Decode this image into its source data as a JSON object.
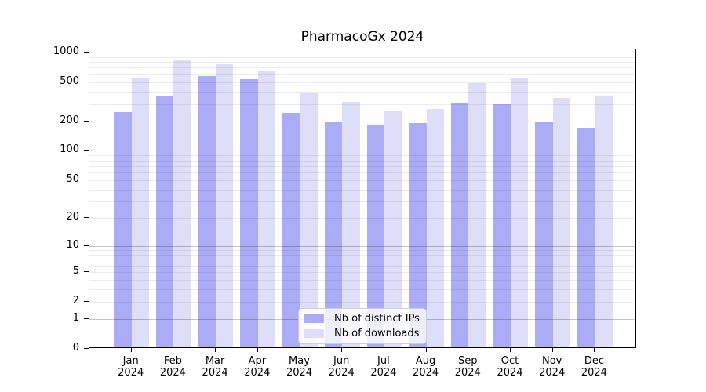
{
  "title": "PharmacoGx 2024",
  "legend": {
    "items": [
      {
        "label": "Nb of distinct IPs",
        "color": "#abacf5"
      },
      {
        "label": "Nb of downloads",
        "color": "#dedef9"
      }
    ]
  },
  "y_axis": {
    "tick_labels": [
      "0",
      "1",
      "2",
      "5",
      "10",
      "20",
      "50",
      "100",
      "200",
      "500",
      "1000"
    ]
  },
  "x_axis": {
    "months": [
      {
        "month": "Jan",
        "year": "2024"
      },
      {
        "month": "Feb",
        "year": "2024"
      },
      {
        "month": "Mar",
        "year": "2024"
      },
      {
        "month": "Apr",
        "year": "2024"
      },
      {
        "month": "May",
        "year": "2024"
      },
      {
        "month": "Jun",
        "year": "2024"
      },
      {
        "month": "Jul",
        "year": "2024"
      },
      {
        "month": "Aug",
        "year": "2024"
      },
      {
        "month": "Sep",
        "year": "2024"
      },
      {
        "month": "Oct",
        "year": "2024"
      },
      {
        "month": "Nov",
        "year": "2024"
      },
      {
        "month": "Dec",
        "year": "2024"
      }
    ]
  },
  "chart_data": {
    "type": "bar",
    "title": "PharmacoGx 2024",
    "scale": "log10(1 + value), 0 at baseline",
    "categories": [
      "Jan 2024",
      "Feb 2024",
      "Mar 2024",
      "Apr 2024",
      "May 2024",
      "Jun 2024",
      "Jul 2024",
      "Aug 2024",
      "Sep 2024",
      "Oct 2024",
      "Nov 2024",
      "Dec 2024"
    ],
    "series": [
      {
        "name": "Nb of distinct IPs",
        "color": "#abacf5",
        "values": [
          240,
          350,
          555,
          520,
          235,
          190,
          175,
          185,
          300,
          290,
          190,
          165
        ]
      },
      {
        "name": "Nb of downloads",
        "color": "#dedef9",
        "values": [
          535,
          800,
          745,
          620,
          380,
          305,
          245,
          260,
          475,
          525,
          335,
          345
        ]
      }
    ],
    "yticks": [
      0,
      1,
      2,
      5,
      10,
      20,
      50,
      100,
      200,
      500,
      1000
    ],
    "minor_gridlines": [
      2,
      3,
      4,
      5,
      6,
      7,
      8,
      9,
      20,
      30,
      40,
      50,
      60,
      70,
      80,
      90,
      200,
      300,
      400,
      500,
      600,
      700,
      800,
      900
    ],
    "major_gridlines": [
      1,
      10,
      100,
      1000
    ],
    "ylim": [
      0,
      1000
    ],
    "grid": true,
    "legend_position": "bottom-center"
  }
}
